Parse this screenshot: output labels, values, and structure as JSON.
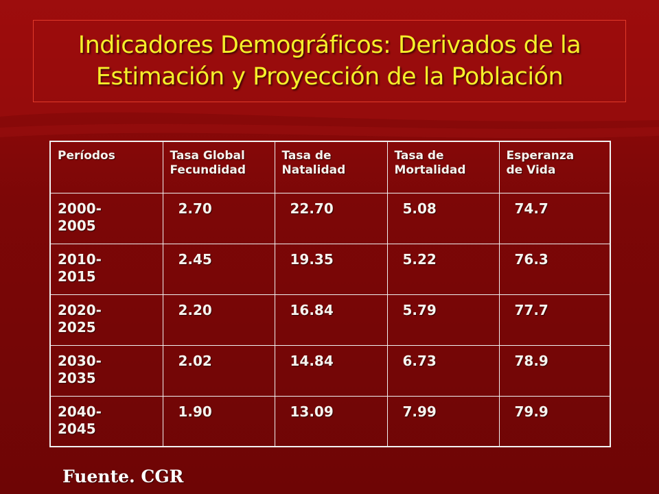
{
  "title_line1": "Indicadores Demográficos: Derivados de la",
  "title_line2": "Estimación y Proyección de la Población",
  "table": {
    "headers": [
      {
        "line1": "Períodos",
        "line2": ""
      },
      {
        "line1": "Tasa Global",
        "line2": "Fecundidad"
      },
      {
        "line1": "Tasa de",
        "line2": "Natalidad"
      },
      {
        "line1": "Tasa de",
        "line2": "Mortalidad"
      },
      {
        "line1": "Esperanza",
        "line2": "de Vida"
      }
    ],
    "rows": [
      {
        "period_start": "2000-",
        "period_end": "2005",
        "tgf": "2.70",
        "natalidad": "22.70",
        "mortalidad": "5.08",
        "esperanza": "74.7"
      },
      {
        "period_start": "2010-",
        "period_end": "2015",
        "tgf": "2.45",
        "natalidad": "19.35",
        "mortalidad": "5.22",
        "esperanza": "76.3"
      },
      {
        "period_start": "2020-",
        "period_end": "2025",
        "tgf": "2.20",
        "natalidad": "16.84",
        "mortalidad": "5.79",
        "esperanza": "77.7"
      },
      {
        "period_start": "2030-",
        "period_end": "2035",
        "tgf": "2.02",
        "natalidad": "14.84",
        "mortalidad": "6.73",
        "esperanza": "78.9"
      },
      {
        "period_start": "2040-",
        "period_end": "2045",
        "tgf": "1.90",
        "natalidad": "13.09",
        "mortalidad": "7.99",
        "esperanza": "79.9"
      }
    ]
  },
  "source": "Fuente. CGR",
  "colors": {
    "background": "#8a0a0a",
    "title": "#f5ef2a",
    "title_border": "#e23a2a",
    "table_text": "#f7f3ee",
    "table_border": "#f2f2f2"
  }
}
